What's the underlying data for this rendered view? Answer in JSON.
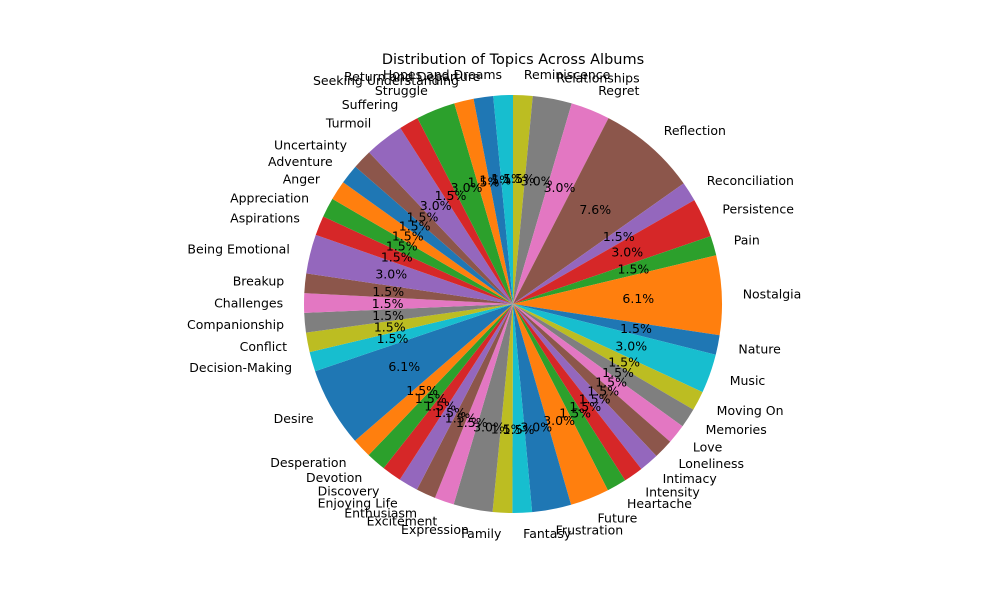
{
  "chart_data": {
    "type": "pie",
    "title": "Distribution of Topics Across Albums",
    "start_angle_deg": 90,
    "direction": "clockwise",
    "value_format": "{:.1f}%",
    "slices": [
      {
        "label": "Reminiscence",
        "value": 1.5,
        "color": "#bcbd22"
      },
      {
        "label": "Relationships",
        "value": 3.0,
        "color": "#7f7f7f"
      },
      {
        "label": "Regret",
        "value": 3.0,
        "color": "#e377c2"
      },
      {
        "label": "Reflection",
        "value": 7.6,
        "color": "#8c564b"
      },
      {
        "label": "Reconciliation",
        "value": 1.5,
        "color": "#9467bd"
      },
      {
        "label": "Persistence",
        "value": 3.0,
        "color": "#d62728"
      },
      {
        "label": "Pain",
        "value": 1.5,
        "color": "#2ca02c"
      },
      {
        "label": "Nostalgia",
        "value": 6.1,
        "color": "#ff7f0e"
      },
      {
        "label": "Nature",
        "value": 1.5,
        "color": "#1f77b4"
      },
      {
        "label": "Music",
        "value": 3.0,
        "color": "#17becf"
      },
      {
        "label": "Moving On",
        "value": 1.5,
        "color": "#bcbd22"
      },
      {
        "label": "Memories",
        "value": 1.5,
        "color": "#7f7f7f"
      },
      {
        "label": "Love",
        "value": 1.5,
        "color": "#e377c2"
      },
      {
        "label": "Loneliness",
        "value": 1.5,
        "color": "#8c564b"
      },
      {
        "label": "Intimacy",
        "value": 1.5,
        "color": "#9467bd"
      },
      {
        "label": "Intensity",
        "value": 1.5,
        "color": "#d62728"
      },
      {
        "label": "Heartache",
        "value": 1.5,
        "color": "#2ca02c"
      },
      {
        "label": "Future",
        "value": 3.0,
        "color": "#ff7f0e"
      },
      {
        "label": "Frustration",
        "value": 3.0,
        "color": "#1f77b4"
      },
      {
        "label": "Fantasy",
        "value": 1.5,
        "color": "#17becf"
      },
      {
        "label": "Family",
        "value": 1.5,
        "color": "#bcbd22"
      },
      {
        "label": "Expression",
        "value": 3.0,
        "color": "#7f7f7f"
      },
      {
        "label": "Excitement",
        "value": 1.5,
        "color": "#e377c2"
      },
      {
        "label": "Enthusiasm",
        "value": 1.5,
        "color": "#8c564b"
      },
      {
        "label": "Enjoying Life",
        "value": 1.5,
        "color": "#9467bd"
      },
      {
        "label": "Discovery",
        "value": 1.5,
        "color": "#d62728"
      },
      {
        "label": "Devotion",
        "value": 1.5,
        "color": "#2ca02c"
      },
      {
        "label": "Desperation",
        "value": 1.5,
        "color": "#ff7f0e"
      },
      {
        "label": "Desire",
        "value": 6.1,
        "color": "#1f77b4"
      },
      {
        "label": "Decision-Making",
        "value": 1.5,
        "color": "#17becf"
      },
      {
        "label": "Conflict",
        "value": 1.5,
        "color": "#bcbd22"
      },
      {
        "label": "Companionship",
        "value": 1.5,
        "color": "#7f7f7f"
      },
      {
        "label": "Challenges",
        "value": 1.5,
        "color": "#e377c2"
      },
      {
        "label": "Breakup",
        "value": 1.5,
        "color": "#8c564b"
      },
      {
        "label": "Being Emotional",
        "value": 3.0,
        "color": "#9467bd"
      },
      {
        "label": "Aspirations",
        "value": 1.5,
        "color": "#d62728"
      },
      {
        "label": "Appreciation",
        "value": 1.5,
        "color": "#2ca02c"
      },
      {
        "label": "Anger",
        "value": 1.5,
        "color": "#ff7f0e"
      },
      {
        "label": "Adventure",
        "value": 1.5,
        "color": "#1f77b4"
      },
      {
        "label": "Uncertainty",
        "value": 1.5,
        "color": "#8c564b"
      },
      {
        "label": "Turmoil",
        "value": 3.0,
        "color": "#9467bd"
      },
      {
        "label": "Suffering",
        "value": 1.5,
        "color": "#d62728"
      },
      {
        "label": "Struggle",
        "value": 3.0,
        "color": "#2ca02c"
      },
      {
        "label": "Seeking Understanding",
        "value": 1.5,
        "color": "#ff7f0e"
      },
      {
        "label": "Return and Departure",
        "value": 1.5,
        "color": "#1f77b4"
      },
      {
        "label": "Hopes and Dreams",
        "value": 1.5,
        "color": "#17becf"
      }
    ]
  }
}
